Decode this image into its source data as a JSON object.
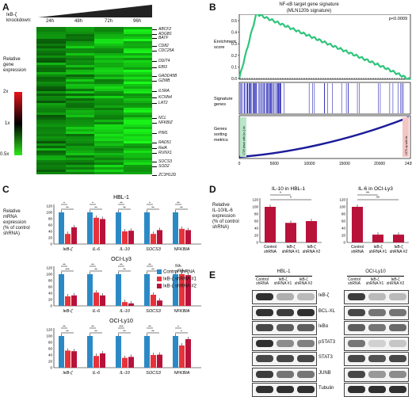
{
  "panelA": {
    "letter": "A",
    "knockdown_label": "IκB-ζ\nknockdown:",
    "timepoints": [
      "24h",
      "48h",
      "72h",
      "96h"
    ],
    "scale_title": "Relative\ngene\nexpression",
    "scale_ticks": [
      "2x",
      "1x",
      "0.5x"
    ],
    "genes": [
      "ABCF2",
      "ADGB1",
      "BATF",
      "CD82",
      "CDC25A",
      "DDIT4",
      "EBI3",
      "GADD45B",
      "GZMB",
      "IL5RA",
      "KCNN4",
      "LAT2",
      "NCL",
      "NFKBIZ",
      "PIM1",
      "RAD51",
      "RelA",
      "RUNX1",
      "SOCS3",
      "SOD2",
      "ZC3H12D"
    ],
    "colors": {
      "high": "#e8141b",
      "mid": "#000000",
      "low": "#2ee81a"
    }
  },
  "panelB": {
    "letter": "B",
    "title": "NF-κB target gene signature\n(MLN120b signature)",
    "pvalue": "p<0.0009",
    "enrichment_label": "Enrichment\nscore",
    "signature_label": "Signature\ngenes",
    "metric_label": "Genes\nsorting\nmetrics",
    "yticks": [
      "0.5",
      "0.4",
      "0.3",
      "0.2",
      "0.1",
      "0.0"
    ],
    "xticks": [
      "0",
      "5000",
      "10000",
      "15000",
      "20000",
      "24399"
    ],
    "left_box": "1729 down with Ipr-ζ-kk",
    "right_box": "1375 up with kk"
  },
  "panelC": {
    "letter": "C",
    "ylabel": "Relative\nmRNA\nexpression\n(% of control\nshRNA)",
    "genes": [
      "IκB-ζ",
      "IL-6",
      "IL-10",
      "SOCS3",
      "NFKBIA"
    ],
    "legend": [
      "Control shRNA",
      "IκB-ζ shRNA #1",
      "IκB-ζ shRNA #2"
    ],
    "colors": [
      "#2b8ac6",
      "#e8323a",
      "#b8123a"
    ],
    "yticks": [
      "0",
      "20",
      "40",
      "60",
      "80",
      "100",
      "120"
    ]
  },
  "panelD": {
    "letter": "D",
    "ylabel": "Relative\nIL-10/IL-6\nexpression\n(% of control\nshRNA)",
    "yticks": [
      "0",
      "20",
      "40",
      "60",
      "80",
      "100",
      "120"
    ],
    "xlabels": [
      "Control\nshRNA",
      "IκB-ζ\nshRNA #1",
      "IκB-ζ\nshRNA #2"
    ]
  },
  "panelE": {
    "letter": "E",
    "cells": [
      "HBL-1",
      "OCI-Ly10"
    ],
    "lanes": [
      "Control\nshRNA",
      "IκB-ζ\nshRNA #1",
      "IκB-ζ\nshRNA #2"
    ],
    "proteins": [
      "IκB-ζ",
      "BCL-XL",
      "IκBα",
      "pSTAT3",
      "STAT3",
      "JUNB",
      "Tubulin"
    ]
  },
  "chart_data": [
    {
      "type": "bar",
      "title": "HBL-1",
      "categories": [
        "IκB-ζ",
        "IL-6",
        "IL-10",
        "SOCS3",
        "NFKBIA"
      ],
      "series": [
        {
          "name": "Control shRNA",
          "values": [
            100,
            100,
            100,
            100,
            100
          ]
        },
        {
          "name": "IκB-ζ shRNA #1",
          "values": [
            32,
            83,
            40,
            32,
            48
          ]
        },
        {
          "name": "IκB-ζ shRNA #2",
          "values": [
            53,
            79,
            42,
            44,
            44
          ]
        }
      ],
      "significance": [
        "*",
        "*",
        "**",
        "*",
        "**"
      ],
      "significance2": [
        "**",
        "**",
        "**",
        "**",
        "**"
      ],
      "ylim": [
        0,
        120
      ]
    },
    {
      "type": "bar",
      "title": "OCI-Ly3",
      "categories": [
        "IκB-ζ",
        "IL-6",
        "IL-10",
        "SOCS3",
        "NFKBIA"
      ],
      "series": [
        {
          "name": "Control shRNA",
          "values": [
            100,
            100,
            100,
            100,
            100
          ]
        },
        {
          "name": "IκB-ζ shRNA #1",
          "values": [
            30,
            42,
            12,
            35,
            100
          ]
        },
        {
          "name": "IκB-ζ shRNA #2",
          "values": [
            33,
            33,
            8,
            17,
            97
          ]
        }
      ],
      "significance": [
        "**",
        "**",
        "**",
        "**",
        "n.s."
      ],
      "significance2": [
        "***",
        "**",
        "**",
        "**",
        "n.s."
      ],
      "ylim": [
        0,
        120
      ]
    },
    {
      "type": "bar",
      "title": "OCI-Ly10",
      "categories": [
        "IκB-ζ",
        "IL-6",
        "IL-10",
        "SOCS3",
        "NFKBIA"
      ],
      "series": [
        {
          "name": "Control shRNA",
          "values": [
            100,
            100,
            100,
            100,
            100
          ]
        },
        {
          "name": "IκB-ζ shRNA #1",
          "values": [
            54,
            37,
            31,
            40,
            70
          ]
        },
        {
          "name": "IκB-ζ shRNA #2",
          "values": [
            52,
            45,
            34,
            41,
            90
          ]
        }
      ],
      "significance": [
        "**",
        "**",
        "***",
        "**",
        "*"
      ],
      "significance2": [
        "**",
        "**",
        "**",
        "**",
        "*"
      ],
      "ylim": [
        0,
        120
      ]
    },
    {
      "type": "bar",
      "title": "IL-10 in HBL-1",
      "categories": [
        "Control shRNA",
        "IκB-ζ shRNA #1",
        "IκB-ζ shRNA #2"
      ],
      "values": [
        100,
        55,
        60
      ],
      "significance": [
        "*",
        "*"
      ],
      "ylim": [
        0,
        120
      ]
    },
    {
      "type": "bar",
      "title": "IL-6 in OCI-Ly3",
      "categories": [
        "Control shRNA",
        "IκB-ζ shRNA #1",
        "IκB-ζ shRNA #2"
      ],
      "values": [
        100,
        22,
        22
      ],
      "significance": [
        "**",
        "**"
      ],
      "ylim": [
        0,
        120
      ]
    }
  ]
}
